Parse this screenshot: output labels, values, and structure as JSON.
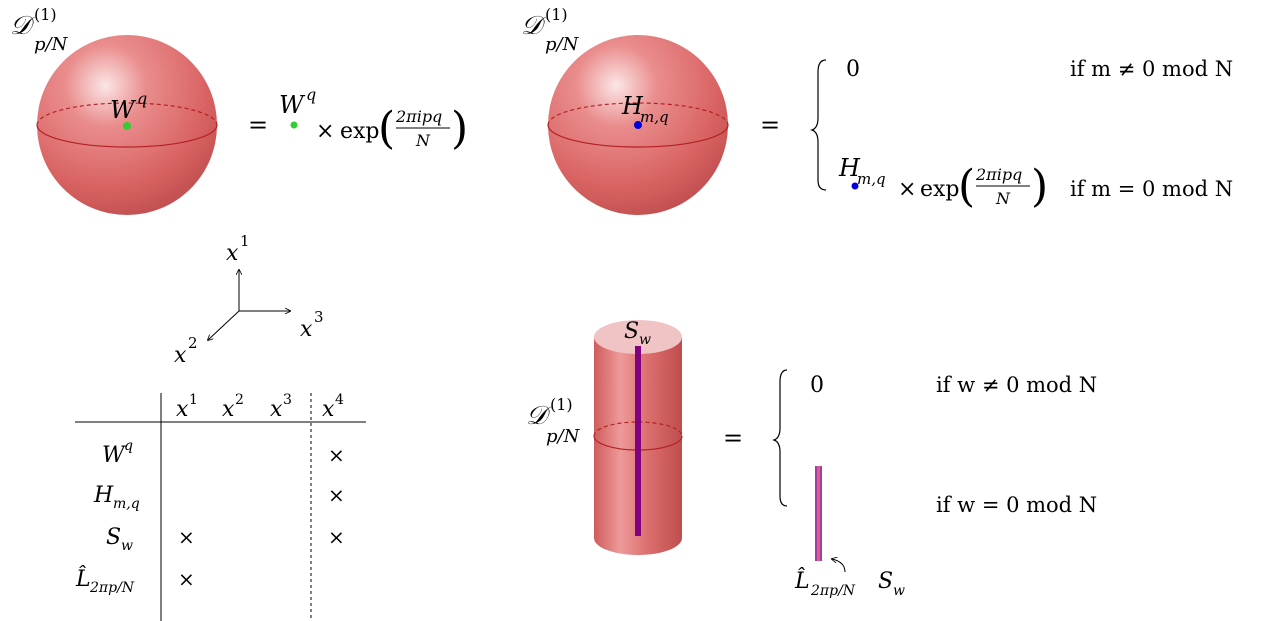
{
  "panel_sphere_wilson": {
    "defect_label": {
      "main": "𝒟",
      "sup": "(1)",
      "sub": "p/N"
    },
    "op_inside": {
      "main": "W",
      "sup": "q"
    },
    "equals": "=",
    "rhs_op": {
      "main": "W",
      "sup": "q"
    },
    "times": "×",
    "exp": "exp",
    "frac_num": "2πipq",
    "frac_den": "N"
  },
  "panel_sphere_hooft": {
    "defect_label": {
      "main": "𝒟",
      "sup": "(1)",
      "sub": "p/N"
    },
    "op_inside": {
      "main": "H",
      "sub": "m,q"
    },
    "equals": "=",
    "case_zero": "0",
    "cond_nonzero": "if m ≠ 0 mod N",
    "rhs_op": {
      "main": "H",
      "sub": "m,q"
    },
    "times": "×",
    "exp": "exp",
    "frac_num": "2πipq",
    "frac_den": "N",
    "cond_zero": "if m = 0 mod N"
  },
  "axes": {
    "x1": "x",
    "x1_sup": "1",
    "x2": "x",
    "x2_sup": "2",
    "x3": "x",
    "x3_sup": "3"
  },
  "table": {
    "columns": [
      {
        "main": "x",
        "sup": "1"
      },
      {
        "main": "x",
        "sup": "2"
      },
      {
        "main": "x",
        "sup": "3"
      },
      {
        "main": "x",
        "sup": "4"
      }
    ],
    "rows": [
      {
        "label": {
          "main": "W",
          "sup": "q"
        },
        "cells": [
          "",
          "",
          "",
          "×"
        ]
      },
      {
        "label": {
          "main": "H",
          "sub": "m,q"
        },
        "cells": [
          "",
          "",
          "",
          "×"
        ]
      },
      {
        "label": {
          "main": "S",
          "sub": "w"
        },
        "cells": [
          "×",
          "",
          "",
          "×"
        ]
      },
      {
        "label": {
          "main": "L̂",
          "sub": "2πp/N"
        },
        "cells": [
          "×",
          "",
          "",
          ""
        ]
      }
    ]
  },
  "panel_cylinder": {
    "defect_label": {
      "main": "𝒟",
      "sup": "(1)",
      "sub": "p/N"
    },
    "op_top": {
      "main": "S",
      "sub": "w"
    },
    "equals": "=",
    "case_zero": "0",
    "cond_nonzero": "if w ≠ 0 mod N",
    "cond_zero": "if w = 0 mod N",
    "result_label": {
      "main": "L̂",
      "sub": "2πp/N",
      "main2": "S",
      "sub2": "w"
    }
  },
  "colors": {
    "sphere": "#e06666",
    "sphere_edge": "#c0392b",
    "wilson_point": "#33cc33",
    "hooft_point": "#0000dd",
    "surface_line": "#800080",
    "line_pink": "#e05a8a"
  }
}
